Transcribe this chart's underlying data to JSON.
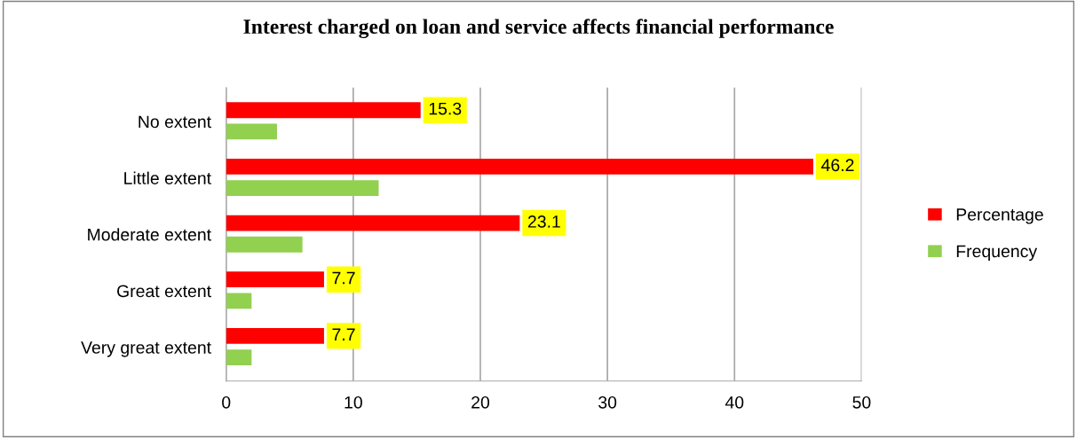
{
  "chart_data": {
    "type": "bar",
    "orientation": "horizontal",
    "title": "Interest charged on loan and service affects financial performance",
    "categories": [
      "No extent",
      "Little extent",
      "Moderate extent",
      "Great extent",
      "Very great extent"
    ],
    "series": [
      {
        "name": "Percentage",
        "color": "#ff0000",
        "values": [
          15.3,
          46.2,
          23.1,
          7.7,
          7.7
        ],
        "value_labels": [
          "15.3",
          "46.2",
          "23.1",
          "7.7",
          "7.7"
        ]
      },
      {
        "name": "Frequency",
        "color": "#92d050",
        "values": [
          4,
          12,
          6,
          2,
          2
        ]
      }
    ],
    "xlim": [
      0,
      50
    ],
    "xticks": [
      0,
      10,
      20,
      30,
      40,
      50
    ],
    "grid": "x",
    "legend": "right"
  }
}
